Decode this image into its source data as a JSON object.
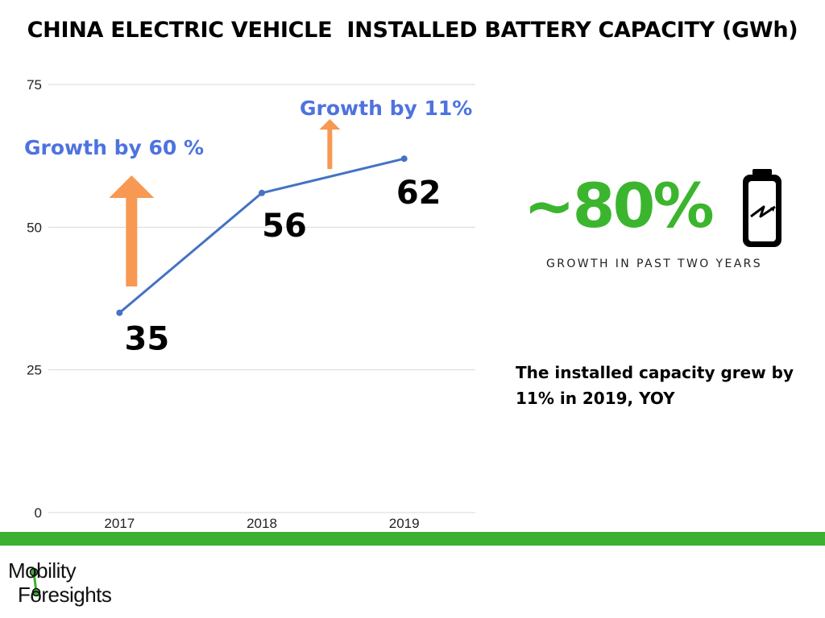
{
  "title": "CHINA ELECTRIC VEHICLE  INSTALLED BATTERY CAPACITY (GWh)",
  "colors": {
    "line": "#4472c4",
    "annotation_text": "#4e73df",
    "arrow": "#f79952",
    "stat_green": "#3bb52e",
    "green_bar": "#3db030",
    "grid": "#d9d9d9"
  },
  "chart_data": {
    "type": "line",
    "title": "CHINA ELECTRIC VEHICLE  INSTALLED BATTERY CAPACITY (GWh)",
    "categories": [
      "2017",
      "2018",
      "2019"
    ],
    "series": [
      {
        "name": "Installed capacity (GWh)",
        "values": [
          35,
          56,
          62
        ]
      }
    ],
    "data_labels": [
      "35",
      "56",
      "62"
    ],
    "y_ticks": [
      "0",
      "25",
      "50",
      "75"
    ],
    "ylim": [
      0,
      75
    ],
    "grid": true,
    "xlabel": "",
    "ylabel": "",
    "annotations": [
      {
        "text": "Growth by 60 %",
        "arrow": "large",
        "between": [
          "2017",
          "2018"
        ]
      },
      {
        "text": "Growth by 11%",
        "arrow": "small",
        "between": [
          "2018",
          "2019"
        ]
      }
    ]
  },
  "stat": {
    "value": "~80%",
    "caption": "GROWTH IN PAST TWO YEARS",
    "icon": "battery-charging-icon"
  },
  "note": "The installed capacity grew by 11% in 2019, YOY",
  "logo": {
    "line1": "Mobility",
    "line2": "Foresights"
  }
}
